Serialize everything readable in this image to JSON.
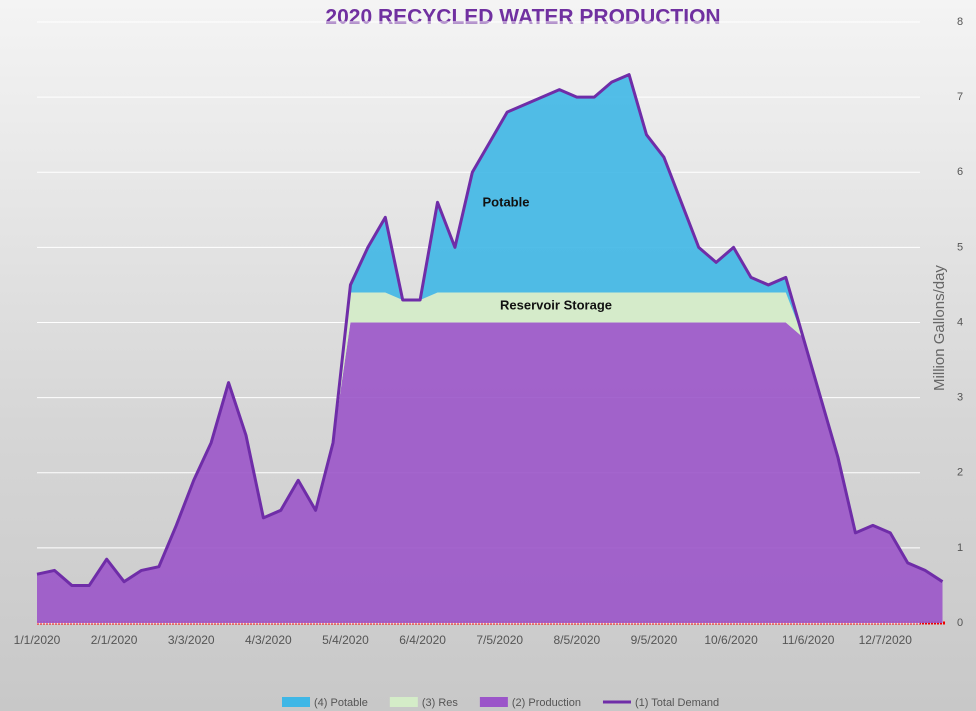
{
  "chart_data": {
    "type": "area",
    "title": "2020 RECYCLED WATER PRODUCTION",
    "y_label": "Million Gallons/day",
    "annotations": [
      "Potable",
      "Reservoir Storage"
    ],
    "x": [
      "1/1/2020",
      "1/8/2020",
      "1/15/2020",
      "1/22/2020",
      "1/29/2020",
      "2/5/2020",
      "2/12/2020",
      "2/19/2020",
      "2/26/2020",
      "3/4/2020",
      "3/11/2020",
      "3/18/2020",
      "3/25/2020",
      "4/1/2020",
      "4/8/2020",
      "4/15/2020",
      "4/22/2020",
      "4/29/2020",
      "5/6/2020",
      "5/13/2020",
      "5/20/2020",
      "5/27/2020",
      "6/3/2020",
      "6/10/2020",
      "6/17/2020",
      "6/24/2020",
      "7/1/2020",
      "7/8/2020",
      "7/15/2020",
      "7/22/2020",
      "7/29/2020",
      "8/5/2020",
      "8/12/2020",
      "8/19/2020",
      "8/26/2020",
      "9/2/2020",
      "9/9/2020",
      "9/16/2020",
      "9/23/2020",
      "9/30/2020",
      "10/7/2020",
      "10/14/2020",
      "10/21/2020",
      "10/28/2020",
      "11/4/2020",
      "11/11/2020",
      "11/18/2020",
      "11/25/2020",
      "12/2/2020",
      "12/9/2020",
      "12/16/2020",
      "12/23/2020",
      "12/30/2020"
    ],
    "series": [
      {
        "name": "(4) Potable",
        "type": "area",
        "color": "#3fb7e6",
        "values": [
          0,
          0,
          0,
          0,
          0,
          0,
          0,
          0,
          0,
          0,
          0,
          0,
          0,
          0,
          0,
          0,
          0,
          0,
          0.1,
          0.6,
          1.0,
          0,
          0,
          1.2,
          0.6,
          1.6,
          2.0,
          2.4,
          2.5,
          2.6,
          2.7,
          2.6,
          2.6,
          2.8,
          2.9,
          2.1,
          1.8,
          1.2,
          0.6,
          0.4,
          0.6,
          0.2,
          0.1,
          0.2,
          0,
          0,
          0,
          0,
          0,
          0,
          0,
          0,
          0
        ]
      },
      {
        "name": "(3) Res",
        "type": "area",
        "color": "#d4ecc8",
        "values": [
          0,
          0,
          0,
          0,
          0,
          0,
          0,
          0,
          0,
          0,
          0,
          0,
          0,
          0,
          0,
          0,
          0,
          0,
          0.4,
          0.4,
          0.4,
          0.3,
          0.3,
          0.4,
          0.4,
          0.4,
          0.4,
          0.4,
          0.4,
          0.4,
          0.4,
          0.4,
          0.4,
          0.4,
          0.4,
          0.4,
          0.4,
          0.4,
          0.4,
          0.4,
          0.4,
          0.4,
          0.4,
          0.4,
          0,
          0,
          0,
          0,
          0,
          0,
          0,
          0,
          0
        ]
      },
      {
        "name": "(2) Production",
        "type": "area",
        "color": "#9b55c9",
        "values": [
          0.65,
          0.7,
          0.5,
          0.5,
          0.85,
          0.55,
          0.7,
          0.75,
          1.3,
          1.9,
          2.4,
          3.2,
          2.5,
          1.4,
          1.5,
          1.9,
          1.5,
          2.4,
          4,
          4,
          4,
          4,
          4,
          4,
          4,
          4,
          4,
          4,
          4,
          4,
          4,
          4,
          4,
          4,
          4,
          4,
          4,
          4,
          4,
          4,
          4,
          4,
          4,
          4,
          3.8,
          3.0,
          2.2,
          1.2,
          1.3,
          1.2,
          0.8,
          0.7,
          0.55
        ]
      },
      {
        "name": "(1) Total Demand",
        "type": "line",
        "color": "#6f2da8",
        "values": [
          0.65,
          0.7,
          0.5,
          0.5,
          0.85,
          0.55,
          0.7,
          0.75,
          1.3,
          1.9,
          2.4,
          3.2,
          2.5,
          1.4,
          1.5,
          1.9,
          1.5,
          2.4,
          4.5,
          5.0,
          5.4,
          4.3,
          4.3,
          5.6,
          5.0,
          6.0,
          6.4,
          6.8,
          6.9,
          7.0,
          7.1,
          7.0,
          7.0,
          7.2,
          7.3,
          6.5,
          6.2,
          5.6,
          5.0,
          4.8,
          5.0,
          4.6,
          4.5,
          4.6,
          3.8,
          3.0,
          2.2,
          1.2,
          1.3,
          1.2,
          0.8,
          0.7,
          0.55
        ]
      }
    ],
    "xlim": [
      "1/1/2020",
      "12/31/2020"
    ],
    "xticks": [
      "1/1/2020",
      "2/1/2020",
      "3/3/2020",
      "4/3/2020",
      "5/4/2020",
      "6/4/2020",
      "7/5/2020",
      "8/5/2020",
      "9/5/2020",
      "10/6/2020",
      "11/6/2020",
      "12/7/2020"
    ],
    "ylim": [
      0,
      8
    ],
    "yticks": [
      0,
      1,
      2,
      3,
      4,
      5,
      6,
      7,
      8
    ],
    "grid": true,
    "legend": "bottom"
  }
}
